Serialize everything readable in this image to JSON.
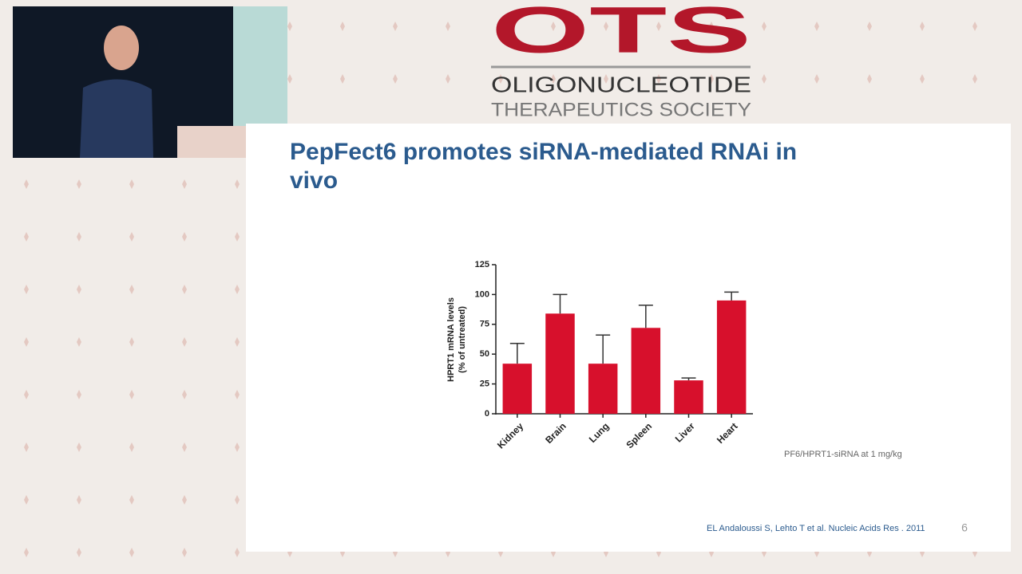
{
  "logo": {
    "acronym": "OTS",
    "line1": "OLIGONUCLEOTIDE",
    "line2": "THERAPEUTICS SOCIETY"
  },
  "slide": {
    "title_lines": [
      "PepFect6 promotes siRNA-mediated RNAi in",
      "vivo"
    ],
    "note": "PF6/HPRT1-siRNA at 1 mg/kg",
    "citation": "EL Andaloussi S, Lehto T et al. Nucleic Acids Res . 2011",
    "page_number": "6"
  },
  "chart_data": {
    "type": "bar",
    "y_label": [
      "HPRT1 mRNA levels",
      "(% of untreated)"
    ],
    "categories": [
      "Kidney",
      "Brain",
      "Lung",
      "Spleen",
      "Liver",
      "Heart"
    ],
    "values": [
      42,
      84,
      42,
      72,
      28,
      95
    ],
    "errors": [
      17,
      16,
      24,
      19,
      2,
      7
    ],
    "color": "#d7102c",
    "ylim": [
      0,
      125
    ],
    "yticks": [
      0,
      25,
      50,
      75,
      100,
      125
    ],
    "grid": false
  }
}
